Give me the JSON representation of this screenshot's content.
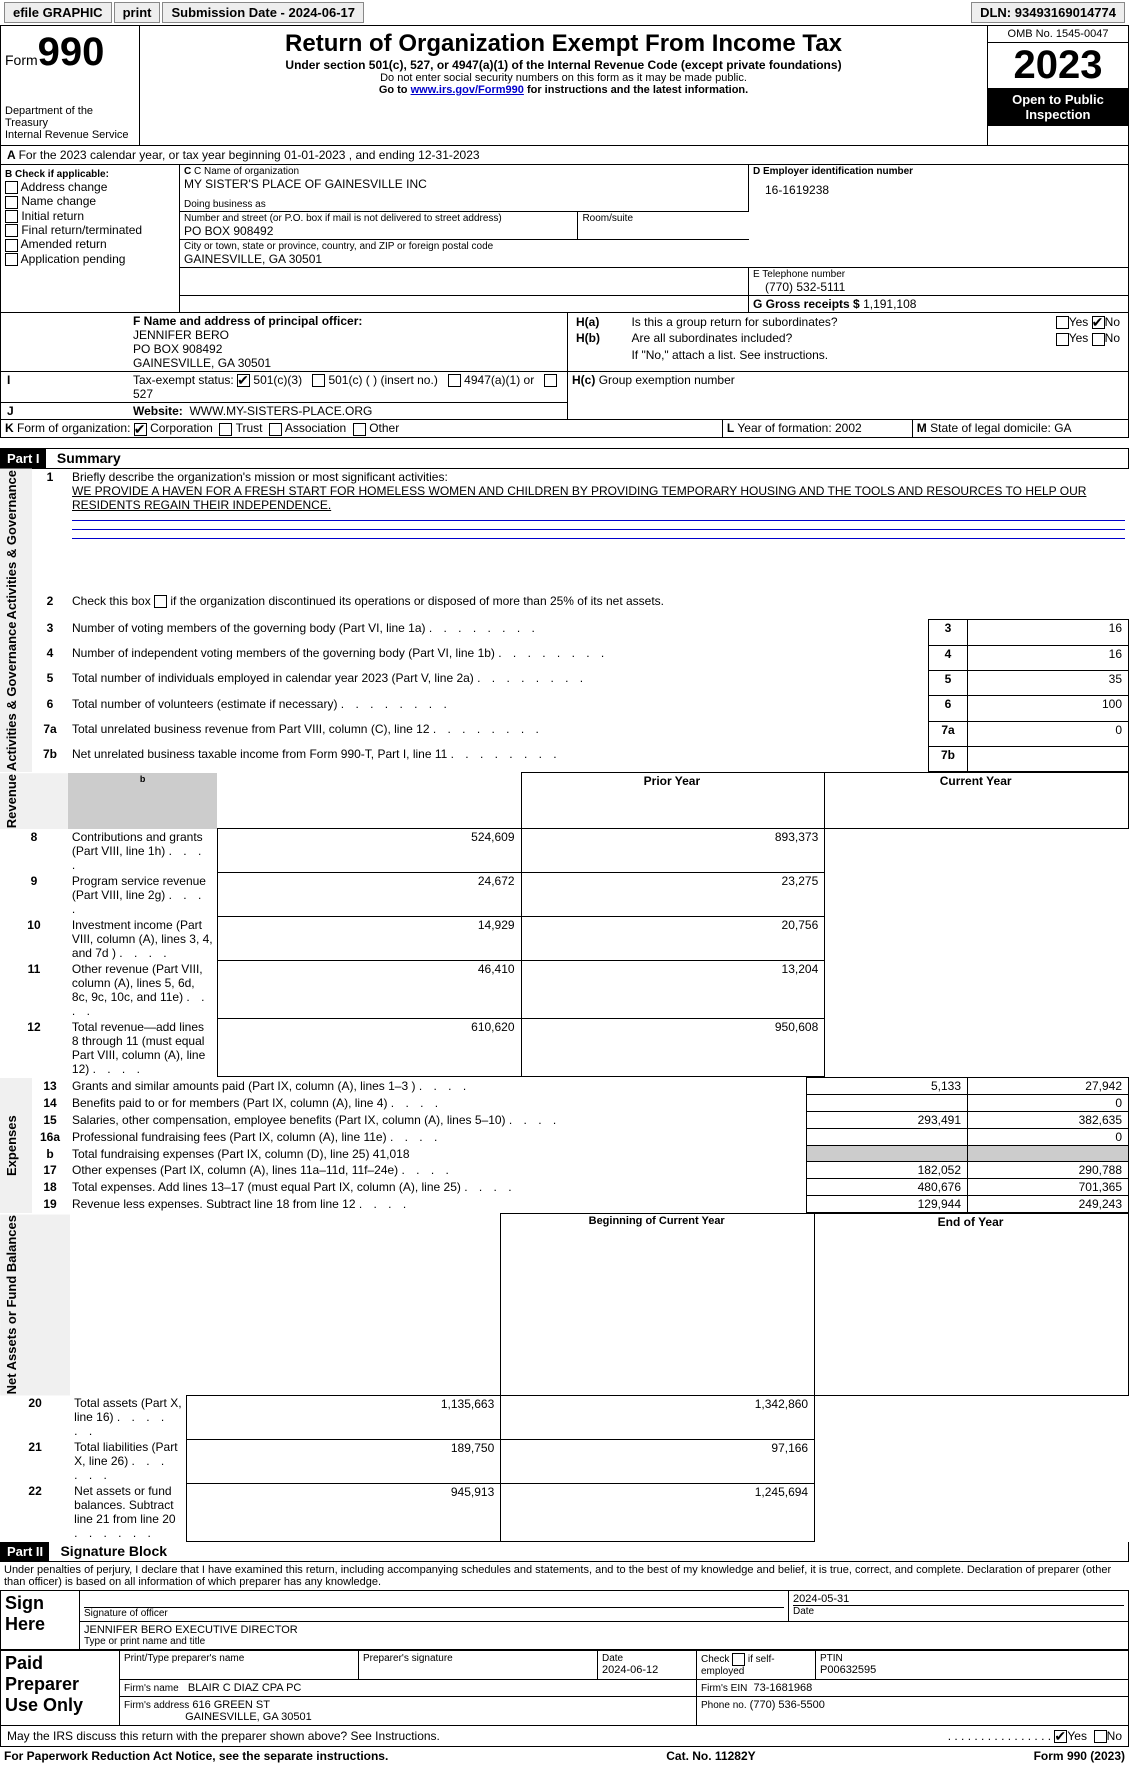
{
  "topbar": {
    "efile": "efile GRAPHIC",
    "print": "print",
    "sub_label": "Submission Date - ",
    "sub_date": "2024-06-17",
    "dln_label": "DLN: ",
    "dln": "93493169014774"
  },
  "header": {
    "form_word": "Form",
    "form_num": "990",
    "dept": "Department of the Treasury",
    "irs": "Internal Revenue Service",
    "title": "Return of Organization Exempt From Income Tax",
    "sub1": "Under section 501(c), 527, or 4947(a)(1) of the Internal Revenue Code (except private foundations)",
    "note1": "Do not enter social security numbers on this form as it may be made public.",
    "note2_pre": "Go to ",
    "note2_link": "www.irs.gov/Form990",
    "note2_post": " for instructions and the latest information.",
    "omb": "OMB No. 1545-0047",
    "year": "2023",
    "inspect": "Open to Public Inspection"
  },
  "line_a": "For the 2023 calendar year, or tax year beginning 01-01-2023    , and ending 12-31-2023",
  "box_b": {
    "label": "B Check if applicable:",
    "opts": [
      "Address change",
      "Name change",
      "Initial return",
      "Final return/terminated",
      "Amended return",
      "Application pending"
    ]
  },
  "box_c": {
    "label": "C Name of organization",
    "name": "MY SISTER'S PLACE OF GAINESVILLE INC",
    "dba_label": "Doing business as",
    "addr_label": "Number and street (or P.O. box if mail is not delivered to street address)",
    "addr": "PO BOX 908492",
    "room_label": "Room/suite",
    "city_label": "City or town, state or province, country, and ZIP or foreign postal code",
    "city": "GAINESVILLE, GA  30501"
  },
  "box_d": {
    "label": "D Employer identification number",
    "val": "16-1619238"
  },
  "box_e": {
    "label": "E Telephone number",
    "val": "(770) 532-5111"
  },
  "box_g": {
    "label": "G Gross receipts $",
    "val": "1,191,108"
  },
  "box_f": {
    "label": "F  Name and address of principal officer:",
    "name": "JENNIFER BERO",
    "addr1": "PO BOX 908492",
    "addr2": "GAINESVILLE, GA  30501"
  },
  "box_h": {
    "ha": "Is this a group return for subordinates?",
    "hb": "Are all subordinates included?",
    "hb_note": "If \"No,\" attach a list. See instructions.",
    "hc": "Group exemption number"
  },
  "box_i": {
    "label": "Tax-exempt status:",
    "opts": [
      "501(c)(3)",
      "501(c) (  ) (insert no.)",
      "4947(a)(1) or",
      "527"
    ]
  },
  "box_j": {
    "label": "Website:",
    "val": "WWW.MY-SISTERS-PLACE.ORG"
  },
  "box_k": {
    "label": "Form of organization:",
    "opts": [
      "Corporation",
      "Trust",
      "Association",
      "Other"
    ]
  },
  "box_l": {
    "label": "Year of formation:",
    "val": "2002"
  },
  "box_m": {
    "label": "State of legal domicile:",
    "val": "GA"
  },
  "part1": {
    "label": "Part I",
    "title": "Summary"
  },
  "mission_label": "Briefly describe the organization's mission or most significant activities:",
  "mission": "WE PROVIDE A HAVEN FOR A FRESH START FOR HOMELESS WOMEN AND CHILDREN BY PROVIDING TEMPORARY HOUSING AND THE TOOLS AND RESOURCES TO HELP OUR RESIDENTS REGAIN THEIR INDEPENDENCE.",
  "line2": "Check this box        if the organization discontinued its operations or disposed of more than 25% of its net assets.",
  "sections": {
    "ag": "Activities & Governance",
    "rev": "Revenue",
    "exp": "Expenses",
    "net": "Net Assets or Fund Balances"
  },
  "gov_lines": [
    {
      "n": "3",
      "t": "Number of voting members of the governing body (Part VI, line 1a)",
      "v": "16"
    },
    {
      "n": "4",
      "t": "Number of independent voting members of the governing body (Part VI, line 1b)",
      "v": "16"
    },
    {
      "n": "5",
      "t": "Total number of individuals employed in calendar year 2023 (Part V, line 2a)",
      "v": "35"
    },
    {
      "n": "6",
      "t": "Total number of volunteers (estimate if necessary)",
      "v": "100"
    },
    {
      "n": "7a",
      "t": "Total unrelated business revenue from Part VIII, column (C), line 12",
      "v": "0"
    },
    {
      "n": "7b",
      "t": "Net unrelated business taxable income from Form 990-T, Part I, line 11",
      "v": ""
    }
  ],
  "col_headers": {
    "prior": "Prior Year",
    "current": "Current Year"
  },
  "rev_lines": [
    {
      "n": "8",
      "t": "Contributions and grants (Part VIII, line 1h)",
      "p": "524,609",
      "c": "893,373"
    },
    {
      "n": "9",
      "t": "Program service revenue (Part VIII, line 2g)",
      "p": "24,672",
      "c": "23,275"
    },
    {
      "n": "10",
      "t": "Investment income (Part VIII, column (A), lines 3, 4, and 7d )",
      "p": "14,929",
      "c": "20,756"
    },
    {
      "n": "11",
      "t": "Other revenue (Part VIII, column (A), lines 5, 6d, 8c, 9c, 10c, and 11e)",
      "p": "46,410",
      "c": "13,204"
    },
    {
      "n": "12",
      "t": "Total revenue—add lines 8 through 11 (must equal Part VIII, column (A), line 12)",
      "p": "610,620",
      "c": "950,608"
    }
  ],
  "exp_lines": [
    {
      "n": "13",
      "t": "Grants and similar amounts paid (Part IX, column (A), lines 1–3 )",
      "p": "5,133",
      "c": "27,942"
    },
    {
      "n": "14",
      "t": "Benefits paid to or for members (Part IX, column (A), line 4)",
      "p": "",
      "c": "0"
    },
    {
      "n": "15",
      "t": "Salaries, other compensation, employee benefits (Part IX, column (A), lines 5–10)",
      "p": "293,491",
      "c": "382,635"
    },
    {
      "n": "16a",
      "t": "Professional fundraising fees (Part IX, column (A), line 11e)",
      "p": "",
      "c": "0"
    },
    {
      "n": "b",
      "t": "Total fundraising expenses (Part IX, column (D), line 25) 41,018",
      "p": "SHADE",
      "c": "SHADE"
    },
    {
      "n": "17",
      "t": "Other expenses (Part IX, column (A), lines 11a–11d, 11f–24e)",
      "p": "182,052",
      "c": "290,788"
    },
    {
      "n": "18",
      "t": "Total expenses. Add lines 13–17 (must equal Part IX, column (A), line 25)",
      "p": "480,676",
      "c": "701,365"
    },
    {
      "n": "19",
      "t": "Revenue less expenses. Subtract line 18 from line 12",
      "p": "129,944",
      "c": "249,243"
    }
  ],
  "net_headers": {
    "begin": "Beginning of Current Year",
    "end": "End of Year"
  },
  "net_lines": [
    {
      "n": "20",
      "t": "Total assets (Part X, line 16)",
      "p": "1,135,663",
      "c": "1,342,860"
    },
    {
      "n": "21",
      "t": "Total liabilities (Part X, line 26)",
      "p": "189,750",
      "c": "97,166"
    },
    {
      "n": "22",
      "t": "Net assets or fund balances. Subtract line 21 from line 20",
      "p": "945,913",
      "c": "1,245,694"
    }
  ],
  "part2": {
    "label": "Part II",
    "title": "Signature Block"
  },
  "penalties": "Under penalties of perjury, I declare that I have examined this return, including accompanying schedules and statements, and to the best of my knowledge and belief, it is true, correct, and complete. Declaration of preparer (other than officer) is based on all information of which preparer has any knowledge.",
  "sign": {
    "here": "Sign Here",
    "sig_label": "Signature of officer",
    "date_val": "2024-05-31",
    "date_label": "Date",
    "name": "JENNIFER BERO  EXECUTIVE DIRECTOR",
    "type_label": "Type or print name and title"
  },
  "paid": {
    "label": "Paid Preparer Use Only",
    "name_label": "Print/Type preparer's name",
    "sig_label": "Preparer's signature",
    "date_label": "Date",
    "date": "2024-06-12",
    "check_label": "Check         if self-employed",
    "ptin_label": "PTIN",
    "ptin": "P00632595",
    "firm_name_label": "Firm's name",
    "firm_name": "BLAIR C DIAZ CPA PC",
    "firm_ein_label": "Firm's EIN",
    "firm_ein": "73-1681968",
    "firm_addr_label": "Firm's address",
    "firm_addr": "616 GREEN ST",
    "firm_city": "GAINESVILLE, GA  30501",
    "phone_label": "Phone no.",
    "phone": "(770) 536-5500"
  },
  "discuss": "May the IRS discuss this return with the preparer shown above? See Instructions.",
  "footer": {
    "left": "For Paperwork Reduction Act Notice, see the separate instructions.",
    "mid": "Cat. No. 11282Y",
    "right": "Form 990 (2023)"
  },
  "yes": "Yes",
  "no": "No"
}
